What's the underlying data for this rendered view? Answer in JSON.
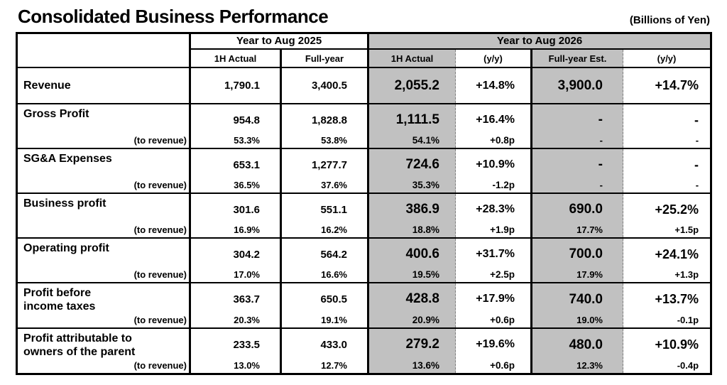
{
  "title": "Consolidated Business Performance",
  "units": "(Billions of Yen)",
  "colors": {
    "shaded_cell": "#c1c1c1",
    "border": "#000000",
    "background": "#ffffff"
  },
  "table": {
    "groups": [
      {
        "label": "Year to Aug 2025"
      },
      {
        "label": "Year to Aug 2026"
      }
    ],
    "col_headers": [
      "1H Actual",
      "Full-year",
      "1H Actual",
      "(y/y)",
      "Full-year Est.",
      "(y/y)"
    ],
    "sub_label": "(to revenue)",
    "rows": [
      {
        "label": "Revenue",
        "values": [
          "1,790.1",
          "3,400.5",
          "2,055.2",
          "+14.8%",
          "3,900.0",
          "+14.7%"
        ],
        "sub_values": null
      },
      {
        "label": "Gross Profit",
        "values": [
          "954.8",
          "1,828.8",
          "1,111.5",
          "+16.4%",
          "-",
          "-"
        ],
        "sub_values": [
          "53.3%",
          "53.8%",
          "54.1%",
          "+0.8p",
          "-",
          "-"
        ]
      },
      {
        "label": "SG&A Expenses",
        "values": [
          "653.1",
          "1,277.7",
          "724.6",
          "+10.9%",
          "-",
          "-"
        ],
        "sub_values": [
          "36.5%",
          "37.6%",
          "35.3%",
          "-1.2p",
          "-",
          "-"
        ]
      },
      {
        "label": "Business profit",
        "values": [
          "301.6",
          "551.1",
          "386.9",
          "+28.3%",
          "690.0",
          "+25.2%"
        ],
        "sub_values": [
          "16.9%",
          "16.2%",
          "18.8%",
          "+1.9p",
          "17.7%",
          "+1.5p"
        ]
      },
      {
        "label": "Operating profit",
        "values": [
          "304.2",
          "564.2",
          "400.6",
          "+31.7%",
          "700.0",
          "+24.1%"
        ],
        "sub_values": [
          "17.0%",
          "16.6%",
          "19.5%",
          "+2.5p",
          "17.9%",
          "+1.3p"
        ]
      },
      {
        "label": "Profit before\nincome taxes",
        "values": [
          "363.7",
          "650.5",
          "428.8",
          "+17.9%",
          "740.0",
          "+13.7%"
        ],
        "sub_values": [
          "20.3%",
          "19.1%",
          "20.9%",
          "+0.6p",
          "19.0%",
          "-0.1p"
        ]
      },
      {
        "label": "Profit attributable to\nowners of the parent",
        "values": [
          "233.5",
          "433.0",
          "279.2",
          "+19.6%",
          "480.0",
          "+10.9%"
        ],
        "sub_values": [
          "13.0%",
          "12.7%",
          "13.6%",
          "+0.6p",
          "12.3%",
          "-0.4p"
        ]
      }
    ]
  }
}
